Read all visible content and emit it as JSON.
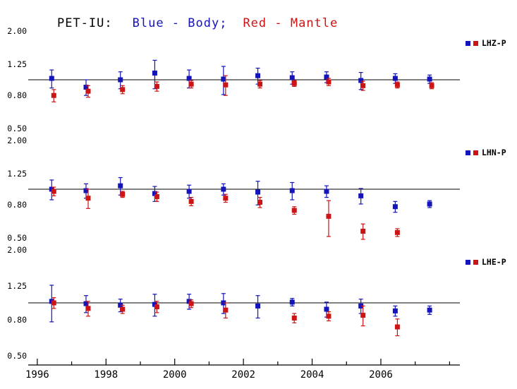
{
  "title": {
    "prefix": "PET-IU:",
    "body_label": "Blue - Body;",
    "mantle_label": "Red - Mantle"
  },
  "colors": {
    "blue": "#1414bb",
    "red": "#cc1414",
    "axis": "#000000"
  },
  "chart_data": {
    "type": "scatter",
    "y_scale": "log",
    "y_ticks": [
      "2.00",
      "1.25",
      "0.80",
      "0.50"
    ],
    "x_ticks": [
      "1996",
      "1998",
      "2000",
      "2002",
      "2004",
      "2006"
    ],
    "x_range": [
      1995.9,
      2008.3
    ],
    "x_years": [
      1996.45,
      1997.45,
      1998.45,
      1999.45,
      2000.45,
      2001.45,
      2002.45,
      2003.45,
      2004.45,
      2005.45,
      2006.45,
      2007.45
    ],
    "reference_line": 1.0,
    "legend_series": [
      {
        "name": "Body",
        "color": "blue"
      },
      {
        "name": "Mantle",
        "color": "red"
      }
    ],
    "panels": [
      {
        "label": "LHZ-P",
        "blue": {
          "y": [
            1.02,
            0.9,
            1.0,
            1.1,
            1.02,
            1.01,
            1.06,
            1.03,
            1.04,
            0.99,
            1.02,
            1.01
          ],
          "err": [
            0.13,
            0.1,
            0.12,
            0.22,
            0.13,
            0.2,
            0.12,
            0.09,
            0.08,
            0.12,
            0.07,
            0.06
          ]
        },
        "red": {
          "y": [
            0.8,
            0.85,
            0.87,
            0.91,
            0.94,
            0.93,
            0.94,
            0.95,
            0.97,
            0.92,
            0.93,
            0.92
          ],
          "err": [
            0.07,
            0.07,
            0.05,
            0.06,
            0.05,
            0.13,
            0.05,
            0.04,
            0.05,
            0.06,
            0.04,
            0.04
          ]
        }
      },
      {
        "label": "LHN-P",
        "blue": {
          "y": [
            1.0,
            0.98,
            1.05,
            0.94,
            0.97,
            1.0,
            0.96,
            0.98,
            0.97,
            0.91,
            0.78,
            0.81
          ],
          "err": [
            0.14,
            0.1,
            0.13,
            0.1,
            0.09,
            0.08,
            0.16,
            0.12,
            0.08,
            0.1,
            0.06,
            0.04
          ]
        },
        "red": {
          "y": [
            0.97,
            0.88,
            0.93,
            0.9,
            0.84,
            0.88,
            0.83,
            0.74,
            0.68,
            0.55,
            0.54,
            null
          ],
          "err": [
            0.06,
            0.12,
            0.04,
            0.06,
            0.05,
            0.05,
            0.06,
            0.04,
            0.17,
            0.06,
            0.03,
            null
          ]
        }
      },
      {
        "label": "LHE-P",
        "blue": {
          "y": [
            1.02,
            0.99,
            0.97,
            0.98,
            1.02,
            1.0,
            0.96,
            1.01,
            0.92,
            0.96,
            0.9,
            0.91
          ],
          "err": [
            0.24,
            0.11,
            0.08,
            0.14,
            0.1,
            0.13,
            0.14,
            0.05,
            0.09,
            0.09,
            0.06,
            0.05
          ]
        },
        "red": {
          "y": [
            1.0,
            0.93,
            0.92,
            0.95,
            0.99,
            0.91,
            null,
            0.82,
            0.84,
            0.85,
            0.73,
            null
          ],
          "err": [
            0.07,
            0.09,
            0.05,
            0.07,
            0.05,
            0.09,
            null,
            0.05,
            0.05,
            0.11,
            0.08,
            null
          ]
        }
      }
    ]
  }
}
